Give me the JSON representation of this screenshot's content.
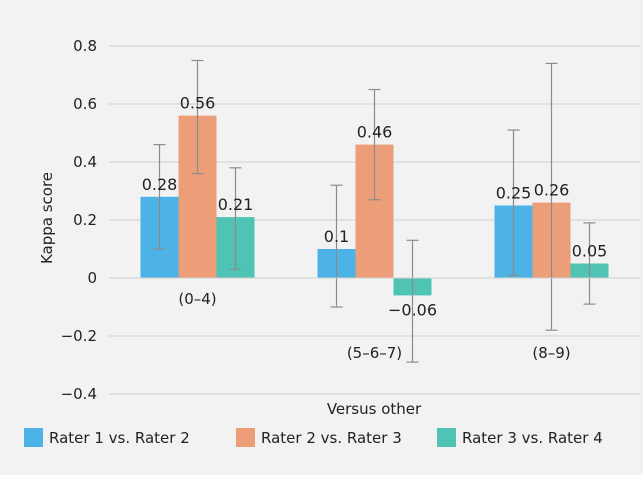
{
  "chart_data": {
    "type": "bar",
    "title": "",
    "xlabel": "Versus other",
    "ylabel": "Kappa score",
    "ylim": [
      -0.4,
      0.8
    ],
    "y_ticks": [
      -0.4,
      -0.2,
      0,
      0.2,
      0.4,
      0.6,
      0.8
    ],
    "y_tick_labels": [
      "−0.4",
      "−0.2",
      "0",
      "0.2",
      "0.4",
      "0.6",
      "0.8"
    ],
    "categories": [
      "(0–4)",
      "(5–6–7)",
      "(8–9)"
    ],
    "grid": "horizontal",
    "legend_position": "bottom",
    "error_bars": true,
    "series": [
      {
        "name": "Rater 1 vs. Rater 2",
        "color": "#4db3e6",
        "values": [
          0.28,
          0.1,
          0.25
        ],
        "value_labels": [
          "0.28",
          "0.1",
          "0.25"
        ],
        "error_low": [
          0.1,
          -0.1,
          0.01
        ],
        "error_high": [
          0.46,
          0.32,
          0.51
        ]
      },
      {
        "name": "Rater 2 vs. Rater 3",
        "color": "#ec9e78",
        "values": [
          0.56,
          0.46,
          0.26
        ],
        "value_labels": [
          "0.56",
          "0.46",
          "0.26"
        ],
        "error_low": [
          0.36,
          0.27,
          -0.18
        ],
        "error_high": [
          0.75,
          0.65,
          0.74
        ]
      },
      {
        "name": "Rater 3 vs. Rater 4",
        "color": "#4fc4b4",
        "values": [
          0.21,
          -0.06,
          0.05
        ],
        "value_labels": [
          "0.21",
          "−0.06",
          "0.05"
        ],
        "error_low": [
          0.03,
          -0.29,
          -0.09
        ],
        "error_high": [
          0.38,
          0.13,
          0.19
        ]
      }
    ]
  }
}
